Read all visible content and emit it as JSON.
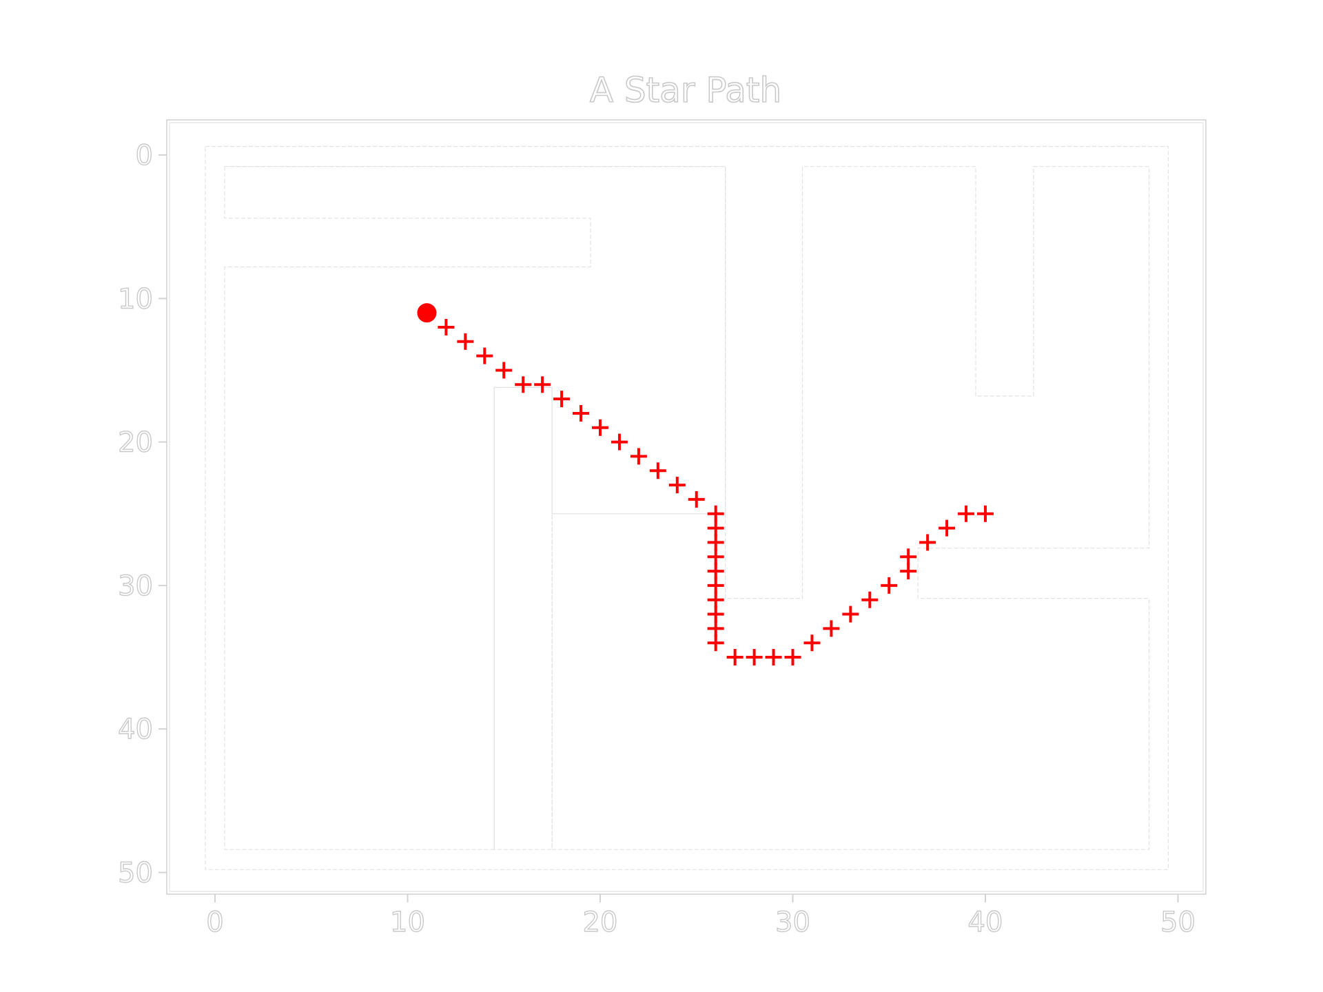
{
  "chart_data": {
    "type": "scatter",
    "title": "A Star Path",
    "xlabel": "",
    "ylabel": "",
    "xlim": [
      -2.5,
      50.5
    ],
    "ylim": [
      52,
      -2.5
    ],
    "x_ticks": [
      0,
      10,
      20,
      30,
      40,
      50
    ],
    "y_ticks": [
      0,
      10,
      20,
      30,
      40,
      50
    ],
    "grid": false,
    "series": [
      {
        "marker": "cross",
        "color": "#ff0000",
        "points": [
          [
            12,
            12
          ],
          [
            13,
            13
          ],
          [
            14,
            14
          ],
          [
            15,
            15
          ],
          [
            16,
            16
          ],
          [
            17,
            16
          ],
          [
            18,
            17
          ],
          [
            19,
            18
          ],
          [
            20,
            19
          ],
          [
            21,
            20
          ],
          [
            22,
            21
          ],
          [
            23,
            22
          ],
          [
            24,
            23
          ],
          [
            25,
            24
          ],
          [
            26,
            25
          ],
          [
            26,
            26
          ],
          [
            26,
            27
          ],
          [
            26,
            28
          ],
          [
            26,
            29
          ],
          [
            26,
            30
          ],
          [
            26,
            31
          ],
          [
            26,
            32
          ],
          [
            26,
            33
          ],
          [
            26,
            34
          ],
          [
            27,
            35
          ],
          [
            28,
            35
          ],
          [
            29,
            35
          ],
          [
            30,
            35
          ],
          [
            31,
            34
          ],
          [
            32,
            33
          ],
          [
            33,
            32
          ],
          [
            34,
            31
          ],
          [
            35,
            30
          ],
          [
            36,
            29
          ],
          [
            36,
            28
          ],
          [
            37,
            27
          ],
          [
            38,
            26
          ],
          [
            39,
            25
          ],
          [
            40,
            25
          ]
        ]
      },
      {
        "marker": "circle",
        "color": "#ff0000",
        "points": [
          [
            11,
            11
          ]
        ]
      }
    ],
    "walls": [
      {
        "kind": "rect",
        "x0": -0.5,
        "y0": -0.6,
        "x1": 49.5,
        "y1": 49.8
      },
      {
        "kind": "poly",
        "points": [
          [
            0.5,
            0.8
          ],
          [
            26.5,
            0.8
          ],
          [
            26.5,
            25
          ],
          [
            17.5,
            25
          ],
          [
            17.5,
            48.4
          ],
          [
            14.5,
            48.4
          ],
          [
            14.5,
            16.2
          ],
          [
            17.5,
            16.2
          ],
          [
            17.5,
            25
          ],
          [
            26.5,
            25
          ]
        ]
      },
      {
        "kind": "poly",
        "points": [
          [
            0.5,
            0.8
          ],
          [
            0.5,
            4.4
          ],
          [
            19.5,
            4.4
          ],
          [
            19.5,
            7.8
          ],
          [
            0.5,
            7.8
          ],
          [
            0.5,
            48.4
          ],
          [
            14.5,
            48.4
          ],
          [
            14.5,
            16.2
          ],
          [
            17.5,
            16.2
          ],
          [
            17.5,
            48.4
          ],
          [
            48.5,
            48.4
          ],
          [
            48.5,
            30.9
          ],
          [
            36.5,
            30.9
          ],
          [
            36.5,
            27.4
          ],
          [
            48.5,
            27.4
          ],
          [
            48.5,
            0.8
          ],
          [
            42.5,
            0.8
          ],
          [
            42.5,
            16.8
          ],
          [
            39.5,
            16.8
          ],
          [
            39.5,
            0.8
          ],
          [
            30.5,
            0.8
          ],
          [
            30.5,
            30.9
          ],
          [
            26.5,
            30.9
          ],
          [
            26.5,
            0.8
          ],
          [
            0.5,
            0.8
          ]
        ]
      }
    ]
  }
}
